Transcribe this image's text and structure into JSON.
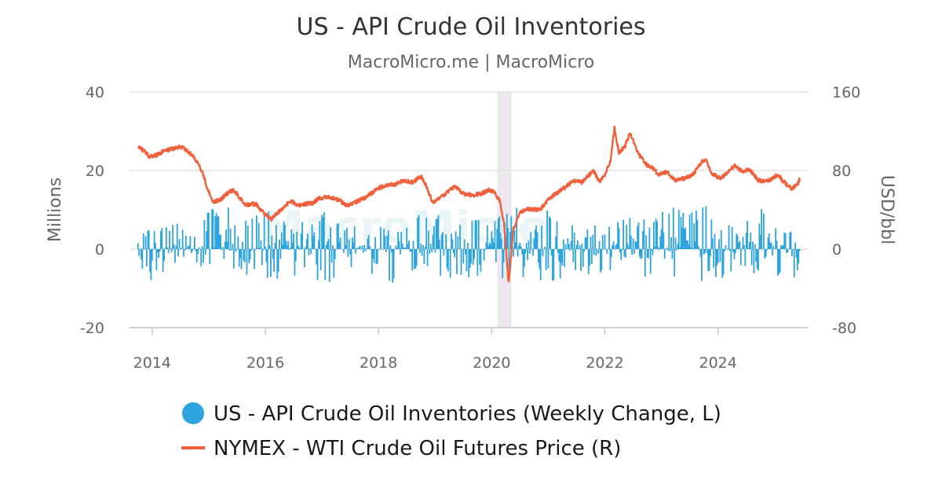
{
  "chart_data": {
    "type": "bar",
    "title": "US - API Crude Oil Inventories",
    "subtitle": "MacroMicro.me | MacroMicro",
    "watermark": "MacroMicro",
    "x_axis": {
      "range": [
        2013.6,
        2025.6
      ],
      "ticks": [
        2014,
        2016,
        2018,
        2020,
        2022,
        2024
      ],
      "tick_labels": [
        "2014",
        "2016",
        "2018",
        "2020",
        "2022",
        "2024"
      ]
    },
    "y_left": {
      "label": "Millions",
      "range": [
        -20,
        40
      ],
      "ticks": [
        -20,
        0,
        20,
        40
      ],
      "tick_labels": [
        "-20",
        "0",
        "20",
        "40"
      ]
    },
    "y_right": {
      "label": "USD/bbl",
      "range": [
        -80,
        160
      ],
      "ticks": [
        -80,
        0,
        80,
        160
      ],
      "tick_labels": [
        "-80",
        "0",
        "80",
        "160"
      ]
    },
    "grid": true,
    "shaded_region": {
      "x_start": 2020.1,
      "x_end": 2020.35,
      "color": "#ece8ee"
    },
    "series": [
      {
        "name": "US - API Crude Oil Inventories (Weekly Change, L)",
        "type": "bar",
        "axis": "left",
        "color": "#2da4dd",
        "note": "weekly changes, roughly between -12 and +13 million",
        "envelope": [
          [
            2013.75,
            3,
            -2
          ],
          [
            2014.0,
            7,
            -12
          ],
          [
            2014.25,
            6,
            -6
          ],
          [
            2014.5,
            7,
            -5
          ],
          [
            2014.75,
            5,
            -4
          ],
          [
            2015.0,
            10,
            -5
          ],
          [
            2015.25,
            12,
            -3
          ],
          [
            2015.5,
            10,
            -6
          ],
          [
            2015.75,
            8,
            -7
          ],
          [
            2016.0,
            10,
            -9
          ],
          [
            2016.25,
            8,
            -8
          ],
          [
            2016.5,
            6,
            -7
          ],
          [
            2016.75,
            9,
            -12
          ],
          [
            2017.0,
            11,
            -9
          ],
          [
            2017.25,
            7,
            -8
          ],
          [
            2017.5,
            6,
            -9
          ],
          [
            2017.75,
            7,
            -6
          ],
          [
            2018.0,
            6,
            -7
          ],
          [
            2018.25,
            5,
            -9
          ],
          [
            2018.5,
            6,
            -6
          ],
          [
            2018.75,
            10,
            -5
          ],
          [
            2019.0,
            9,
            -6
          ],
          [
            2019.25,
            8,
            -8
          ],
          [
            2019.5,
            6,
            -10
          ],
          [
            2019.75,
            8,
            -7
          ],
          [
            2020.0,
            7,
            -6
          ],
          [
            2020.25,
            13,
            -8
          ],
          [
            2020.5,
            10,
            -7
          ],
          [
            2020.75,
            6,
            -8
          ],
          [
            2021.0,
            11,
            -9
          ],
          [
            2021.25,
            7,
            -8
          ],
          [
            2021.5,
            6,
            -6
          ],
          [
            2021.75,
            8,
            -7
          ],
          [
            2022.0,
            6,
            -6
          ],
          [
            2022.25,
            7,
            -6
          ],
          [
            2022.5,
            9,
            -8
          ],
          [
            2022.75,
            10,
            -7
          ],
          [
            2023.0,
            15,
            -6
          ],
          [
            2023.25,
            11,
            -9
          ],
          [
            2023.5,
            9,
            -15
          ],
          [
            2023.75,
            12,
            -7
          ],
          [
            2024.0,
            6,
            -8
          ],
          [
            2024.25,
            8,
            -6
          ],
          [
            2024.5,
            7,
            -7
          ],
          [
            2024.75,
            11,
            -6
          ],
          [
            2025.0,
            7,
            -7
          ],
          [
            2025.25,
            5,
            -6
          ],
          [
            2025.45,
            3,
            -10
          ]
        ]
      },
      {
        "name": "NYMEX - WTI Crude Oil Futures Price (R)",
        "type": "line",
        "axis": "right",
        "color": "#f0603c",
        "points": [
          [
            2013.75,
            105
          ],
          [
            2013.85,
            100
          ],
          [
            2013.95,
            94
          ],
          [
            2014.1,
            96
          ],
          [
            2014.2,
            100
          ],
          [
            2014.35,
            102
          ],
          [
            2014.5,
            104
          ],
          [
            2014.6,
            101
          ],
          [
            2014.7,
            96
          ],
          [
            2014.8,
            88
          ],
          [
            2014.9,
            76
          ],
          [
            2015.0,
            58
          ],
          [
            2015.08,
            48
          ],
          [
            2015.2,
            50
          ],
          [
            2015.35,
            58
          ],
          [
            2015.45,
            60
          ],
          [
            2015.55,
            52
          ],
          [
            2015.65,
            45
          ],
          [
            2015.75,
            46
          ],
          [
            2015.85,
            45
          ],
          [
            2015.95,
            38
          ],
          [
            2016.1,
            30
          ],
          [
            2016.2,
            36
          ],
          [
            2016.35,
            44
          ],
          [
            2016.45,
            49
          ],
          [
            2016.6,
            44
          ],
          [
            2016.7,
            46
          ],
          [
            2016.85,
            47
          ],
          [
            2016.95,
            52
          ],
          [
            2017.1,
            53
          ],
          [
            2017.3,
            50
          ],
          [
            2017.45,
            44
          ],
          [
            2017.6,
            48
          ],
          [
            2017.75,
            52
          ],
          [
            2017.9,
            58
          ],
          [
            2018.0,
            62
          ],
          [
            2018.15,
            65
          ],
          [
            2018.3,
            66
          ],
          [
            2018.45,
            70
          ],
          [
            2018.6,
            68
          ],
          [
            2018.75,
            74
          ],
          [
            2018.85,
            64
          ],
          [
            2018.95,
            48
          ],
          [
            2019.05,
            50
          ],
          [
            2019.25,
            60
          ],
          [
            2019.35,
            64
          ],
          [
            2019.5,
            56
          ],
          [
            2019.65,
            55
          ],
          [
            2019.8,
            56
          ],
          [
            2019.95,
            60
          ],
          [
            2020.05,
            58
          ],
          [
            2020.15,
            48
          ],
          [
            2020.22,
            25
          ],
          [
            2020.3,
            -37
          ],
          [
            2020.38,
            20
          ],
          [
            2020.5,
            38
          ],
          [
            2020.65,
            41
          ],
          [
            2020.85,
            40
          ],
          [
            2020.95,
            47
          ],
          [
            2021.1,
            55
          ],
          [
            2021.3,
            63
          ],
          [
            2021.45,
            70
          ],
          [
            2021.6,
            68
          ],
          [
            2021.8,
            80
          ],
          [
            2021.9,
            68
          ],
          [
            2022.0,
            76
          ],
          [
            2022.1,
            90
          ],
          [
            2022.17,
            123
          ],
          [
            2022.25,
            98
          ],
          [
            2022.35,
            104
          ],
          [
            2022.45,
            118
          ],
          [
            2022.6,
            96
          ],
          [
            2022.75,
            85
          ],
          [
            2022.85,
            82
          ],
          [
            2022.95,
            76
          ],
          [
            2023.1,
            78
          ],
          [
            2023.25,
            70
          ],
          [
            2023.4,
            72
          ],
          [
            2023.55,
            75
          ],
          [
            2023.7,
            88
          ],
          [
            2023.78,
            92
          ],
          [
            2023.9,
            76
          ],
          [
            2024.05,
            72
          ],
          [
            2024.2,
            80
          ],
          [
            2024.3,
            85
          ],
          [
            2024.45,
            78
          ],
          [
            2024.55,
            82
          ],
          [
            2024.7,
            70
          ],
          [
            2024.85,
            69
          ],
          [
            2024.95,
            71
          ],
          [
            2025.05,
            76
          ],
          [
            2025.15,
            69
          ],
          [
            2025.3,
            62
          ],
          [
            2025.4,
            65
          ],
          [
            2025.45,
            72
          ]
        ]
      }
    ]
  },
  "legend": {
    "items": [
      {
        "label": "US - API Crude Oil Inventories (Weekly Change, L)",
        "marker": "circle",
        "color": "#2da4dd"
      },
      {
        "label": "NYMEX - WTI Crude Oil Futures Price (R)",
        "marker": "line",
        "color": "#f0603c"
      }
    ]
  }
}
